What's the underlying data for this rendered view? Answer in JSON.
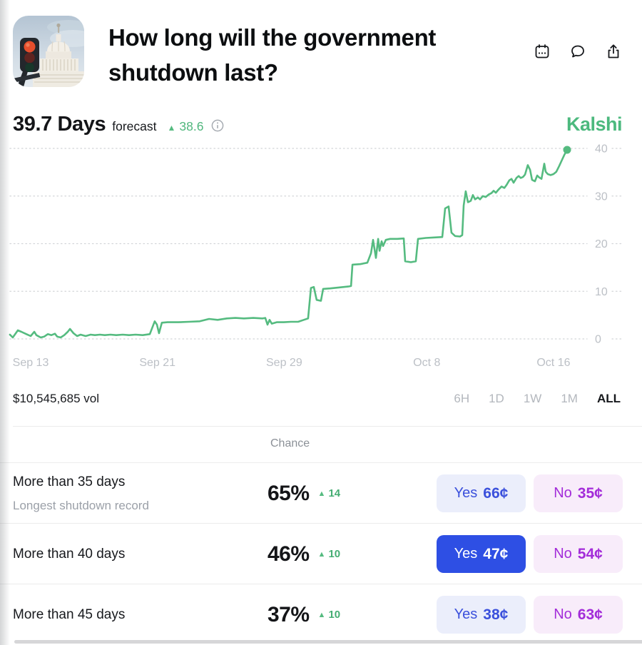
{
  "header": {
    "title": "How long will the government shutdown last?",
    "icons": [
      "calendar",
      "comment",
      "share"
    ]
  },
  "forecast": {
    "value": "39.7 Days",
    "label": "forecast",
    "delta": "38.6"
  },
  "brand": {
    "logo": "Kalshi"
  },
  "chart_data": {
    "type": "line",
    "title": "",
    "ylabel": "Days",
    "x_unit": "days since Sep 13",
    "grid": "dotted-horizontal",
    "legend": false,
    "line_color": "#55bb80",
    "x_domain": [
      -1.35,
      34.2
    ],
    "y_domain": [
      0,
      42
    ],
    "y_ticks": [
      0,
      10,
      20,
      30,
      40
    ],
    "x_ticks": [
      {
        "label": "Sep 13",
        "day": 0
      },
      {
        "label": "Sep 21",
        "day": 8
      },
      {
        "label": "Sep 29",
        "day": 16
      },
      {
        "label": "Oct 8",
        "day": 25
      },
      {
        "label": "Oct 16",
        "day": 33
      }
    ],
    "latest": {
      "value": 39.7,
      "change": 38.6
    },
    "series": [
      {
        "name": "forecast",
        "points": [
          [
            -1.31,
            0.9
          ],
          [
            -1.13,
            0.3
          ],
          [
            -0.81,
            1.8
          ],
          [
            -0.59,
            1.5
          ],
          [
            -0.27,
            1.0
          ],
          [
            0,
            0.6
          ],
          [
            0.23,
            1.5
          ],
          [
            0.36,
            0.8
          ],
          [
            0.63,
            0.3
          ],
          [
            0.86,
            0.5
          ],
          [
            1.08,
            1.0
          ],
          [
            1.31,
            0.8
          ],
          [
            1.53,
            1.1
          ],
          [
            1.67,
            0.5
          ],
          [
            1.89,
            0.3
          ],
          [
            2.12,
            0.8
          ],
          [
            2.34,
            1.5
          ],
          [
            2.48,
            2.1
          ],
          [
            2.7,
            1.2
          ],
          [
            2.93,
            0.6
          ],
          [
            3.15,
            0.9
          ],
          [
            3.47,
            0.6
          ],
          [
            3.78,
            0.9
          ],
          [
            4.05,
            0.8
          ],
          [
            4.37,
            0.9
          ],
          [
            4.68,
            0.8
          ],
          [
            5.04,
            0.9
          ],
          [
            5.4,
            0.8
          ],
          [
            5.81,
            0.9
          ],
          [
            6.21,
            0.8
          ],
          [
            6.62,
            0.9
          ],
          [
            7.07,
            0.8
          ],
          [
            7.52,
            1.0
          ],
          [
            7.83,
            3.7
          ],
          [
            7.97,
            3.0
          ],
          [
            8.1,
            1.2
          ],
          [
            8.28,
            3.4
          ],
          [
            8.64,
            3.5
          ],
          [
            9.32,
            3.5
          ],
          [
            9.99,
            3.6
          ],
          [
            10.67,
            3.7
          ],
          [
            11.26,
            4.2
          ],
          [
            11.8,
            4.0
          ],
          [
            12.38,
            4.3
          ],
          [
            12.92,
            4.4
          ],
          [
            13.46,
            4.3
          ],
          [
            14.05,
            4.4
          ],
          [
            14.63,
            4.3
          ],
          [
            14.81,
            4.4
          ],
          [
            14.95,
            3.0
          ],
          [
            15.08,
            4.0
          ],
          [
            15.22,
            3.2
          ],
          [
            15.53,
            3.5
          ],
          [
            15.98,
            3.5
          ],
          [
            16.43,
            3.6
          ],
          [
            16.88,
            3.6
          ],
          [
            17.24,
            4.0
          ],
          [
            17.51,
            4.3
          ],
          [
            17.69,
            10.7
          ],
          [
            17.87,
            10.9
          ],
          [
            18.05,
            8.2
          ],
          [
            18.32,
            8.0
          ],
          [
            18.46,
            10.5
          ],
          [
            18.91,
            10.6
          ],
          [
            19.45,
            10.8
          ],
          [
            20.04,
            11.0
          ],
          [
            20.22,
            11.1
          ],
          [
            20.31,
            15.6
          ],
          [
            20.8,
            15.7
          ],
          [
            21.25,
            16.0
          ],
          [
            21.48,
            18.0
          ],
          [
            21.61,
            20.8
          ],
          [
            21.79,
            17.0
          ],
          [
            21.93,
            21.0
          ],
          [
            22.02,
            18.5
          ],
          [
            22.15,
            20.5
          ],
          [
            22.24,
            19.5
          ],
          [
            22.42,
            20.8
          ],
          [
            22.69,
            21.0
          ],
          [
            23.14,
            21.0
          ],
          [
            23.55,
            21.1
          ],
          [
            23.64,
            16.3
          ],
          [
            24.0,
            16.1
          ],
          [
            24.31,
            16.3
          ],
          [
            24.45,
            21.0
          ],
          [
            24.94,
            21.2
          ],
          [
            25.48,
            21.3
          ],
          [
            25.98,
            21.4
          ],
          [
            26.16,
            27.4
          ],
          [
            26.38,
            27.8
          ],
          [
            26.56,
            22.3
          ],
          [
            26.79,
            21.6
          ],
          [
            27.1,
            21.5
          ],
          [
            27.24,
            21.8
          ],
          [
            27.33,
            28.0
          ],
          [
            27.46,
            31.0
          ],
          [
            27.6,
            28.7
          ],
          [
            27.78,
            29.0
          ],
          [
            27.91,
            30.2
          ],
          [
            28.05,
            29.3
          ],
          [
            28.23,
            29.7
          ],
          [
            28.36,
            29.3
          ],
          [
            28.54,
            30.0
          ],
          [
            28.72,
            29.8
          ],
          [
            28.9,
            30.3
          ],
          [
            29.08,
            30.6
          ],
          [
            29.22,
            31.1
          ],
          [
            29.36,
            30.7
          ],
          [
            29.54,
            31.4
          ],
          [
            29.72,
            32.0
          ],
          [
            29.9,
            31.7
          ],
          [
            30.03,
            32.3
          ],
          [
            30.21,
            33.3
          ],
          [
            30.35,
            33.6
          ],
          [
            30.48,
            32.8
          ],
          [
            30.66,
            33.8
          ],
          [
            30.8,
            34.2
          ],
          [
            30.93,
            33.8
          ],
          [
            31.07,
            34.0
          ],
          [
            31.2,
            34.5
          ],
          [
            31.38,
            36.5
          ],
          [
            31.52,
            35.5
          ],
          [
            31.65,
            33.4
          ],
          [
            31.83,
            33.1
          ],
          [
            31.97,
            34.3
          ],
          [
            32.1,
            33.9
          ],
          [
            32.24,
            33.6
          ],
          [
            32.42,
            36.8
          ],
          [
            32.51,
            35.1
          ],
          [
            32.64,
            34.6
          ],
          [
            32.82,
            34.4
          ],
          [
            33.0,
            34.6
          ],
          [
            33.18,
            35.1
          ],
          [
            33.36,
            36.3
          ],
          [
            33.54,
            37.6
          ],
          [
            33.68,
            38.6
          ],
          [
            33.86,
            39.7
          ]
        ]
      }
    ]
  },
  "volume": {
    "text": "$10,545,685 vol"
  },
  "time_filters": {
    "options": [
      "6H",
      "1D",
      "1W",
      "1M",
      "ALL"
    ],
    "selected": "ALL"
  },
  "market_table": {
    "chance_header": "Chance",
    "rows": [
      {
        "title": "More than 35 days",
        "subtitle": "Longest shutdown record",
        "chance": "65%",
        "delta": "14",
        "yes_label": "Yes",
        "yes_price": "66¢",
        "no_label": "No",
        "no_price": "35¢",
        "yes_selected": false
      },
      {
        "title": "More than 40 days",
        "subtitle": "",
        "chance": "46%",
        "delta": "10",
        "yes_label": "Yes",
        "yes_price": "47¢",
        "no_label": "No",
        "no_price": "54¢",
        "yes_selected": true
      },
      {
        "title": "More than 45 days",
        "subtitle": "",
        "chance": "37%",
        "delta": "10",
        "yes_label": "Yes",
        "yes_price": "38¢",
        "no_label": "No",
        "no_price": "63¢",
        "yes_selected": false
      }
    ]
  },
  "colors": {
    "accent_green": "#55bb80",
    "brand_green": "#4cb97e",
    "yes_blue_text": "#3b50dc",
    "yes_blue_bg": "#ebeefb",
    "yes_selected_bg": "#2e4fe4",
    "no_purple_text": "#a32cd9",
    "no_purple_bg": "#f8ecfa",
    "axis_gray": "#bcc0c6"
  }
}
